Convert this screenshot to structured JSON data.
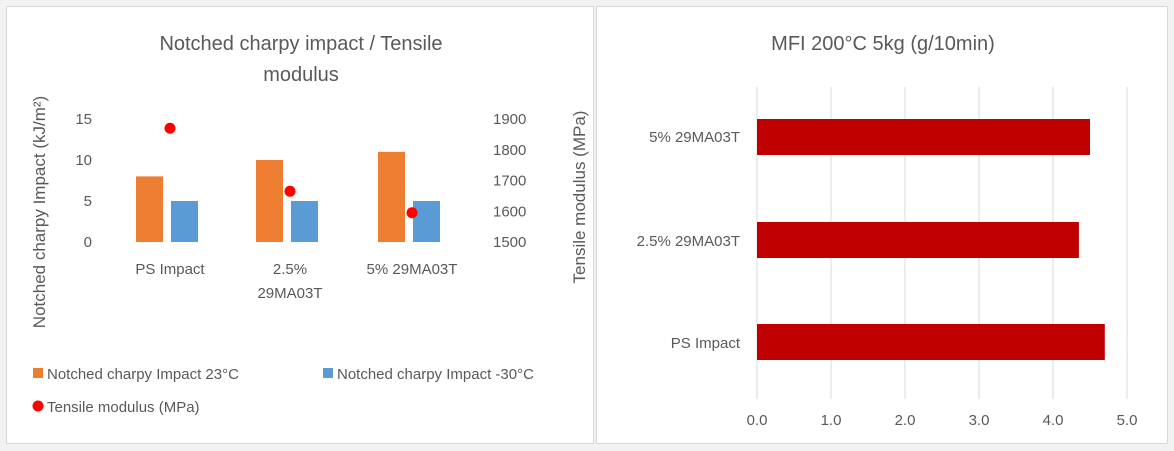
{
  "left_chart": {
    "title_line1": "Notched charpy impact / Tensile",
    "title_line2": "modulus",
    "y_label": "Notched charpy Impact (kJ/m²)",
    "y2_label": "Tensile modulus (MPa)",
    "y_ticks": [
      "0",
      "5",
      "10",
      "15"
    ],
    "y2_ticks": [
      "1500",
      "1600",
      "1700",
      "1800",
      "1900"
    ],
    "categories": [
      {
        "line1": "PS Impact",
        "line2": ""
      },
      {
        "line1": "2.5%",
        "line2": "29MA03T"
      },
      {
        "line1": "5% 29MA03T",
        "line2": ""
      }
    ],
    "legend": {
      "s1": "Notched charpy Impact  23°C",
      "s2": "Notched charpy Impact -30°C",
      "s3": "Tensile modulus (MPa)"
    }
  },
  "right_chart": {
    "title": "MFI 200°C 5kg (g/10min)",
    "categories": [
      "5% 29MA03T",
      "2.5% 29MA03T",
      "PS Impact"
    ],
    "x_ticks": [
      "0.0",
      "1.0",
      "2.0",
      "3.0",
      "4.0",
      "5.0"
    ]
  },
  "chart_data": [
    {
      "type": "bar",
      "title": "Notched charpy impact / Tensile modulus",
      "categories": [
        "PS Impact",
        "2.5% 29MA03T",
        "5% 29MA03T"
      ],
      "ylabel": "Notched charpy Impact (kJ/m²)",
      "ylim": [
        0,
        15
      ],
      "y2label": "Tensile modulus (MPa)",
      "y2lim": [
        1500,
        1900
      ],
      "series": [
        {
          "name": "Notched charpy Impact  23°C",
          "type": "bar",
          "axis": "left",
          "color": "#ed7d31",
          "values": [
            8,
            10,
            11
          ]
        },
        {
          "name": "Notched charpy Impact -30°C",
          "type": "bar",
          "axis": "left",
          "color": "#5b9bd5",
          "values": [
            5,
            5,
            5
          ]
        },
        {
          "name": "Tensile modulus (MPa)",
          "type": "scatter",
          "axis": "right",
          "color": "#ff0000",
          "values": [
            1870,
            1665,
            1595
          ]
        }
      ],
      "legend_position": "bottom",
      "grid": false
    },
    {
      "type": "bar",
      "orientation": "horizontal",
      "title": "MFI 200°C 5kg (g/10min)",
      "categories": [
        "PS Impact",
        "2.5% 29MA03T",
        "5% 29MA03T"
      ],
      "values": [
        4.7,
        4.35,
        4.5
      ],
      "xlim": [
        0,
        5
      ],
      "color": "#c00000",
      "grid": true,
      "legend": false
    }
  ]
}
